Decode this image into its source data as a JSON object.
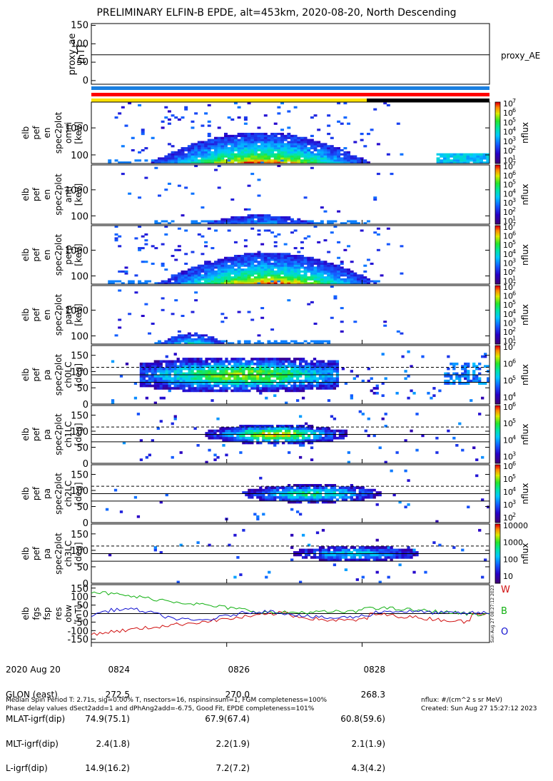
{
  "title": "PRELIMINARY ELFIN-B EPDE, alt=453km, 2020-08-20, North Descending",
  "chart_data": [
    {
      "type": "line",
      "panel": "proxy_ae",
      "ylabel": "proxy_ae [nT]",
      "yticks": [
        "150",
        "100",
        "50",
        "0"
      ],
      "ylim": [
        -10,
        155
      ],
      "right_label": "proxy_AE",
      "series": [
        {
          "values": [
            70,
            70
          ]
        }
      ]
    },
    {
      "type": "heatmap",
      "panel": "elb_pef_en_spec2plot_omni",
      "ylabel": "elb pef en spec2plot omni [keV]",
      "yticks": [
        "1000",
        "100"
      ],
      "colorbar_label": "nflux",
      "colorbar_ticks": [
        "10^7",
        "10^6",
        "10^5",
        "10^4",
        "10^3",
        "10^2",
        "10^1"
      ]
    },
    {
      "type": "heatmap",
      "panel": "elb_pef_en_spec2plot_anti",
      "ylabel": "elb pef en spec2plot anti [keV]",
      "yticks": [
        "1000",
        "100"
      ],
      "colorbar_label": "nflux",
      "colorbar_ticks": [
        "10^7",
        "10^6",
        "10^5",
        "10^4",
        "10^3",
        "10^2",
        "10^1"
      ]
    },
    {
      "type": "heatmap",
      "panel": "elb_pef_en_spec2plot_perp",
      "ylabel": "elb pef en spec2plot perp [keV]",
      "yticks": [
        "1000",
        "100"
      ],
      "colorbar_label": "nflux",
      "colorbar_ticks": [
        "10^7",
        "10^6",
        "10^5",
        "10^4",
        "10^3",
        "10^2",
        "10^1"
      ]
    },
    {
      "type": "heatmap",
      "panel": "elb_pef_en_spec2plot_para",
      "ylabel": "elb pef en spec2plot para [keV]",
      "yticks": [
        "1000",
        "100"
      ],
      "colorbar_label": "nflux",
      "colorbar_ticks": [
        "10^7",
        "10^6",
        "10^5",
        "10^4",
        "10^3",
        "10^2",
        "10^1"
      ]
    },
    {
      "type": "heatmap",
      "panel": "elb_pef_pa_spec2plot_ch0LC",
      "ylabel": "elb pef pa spec2plot ch0LC [deg]",
      "yticks": [
        "150",
        "100",
        "50",
        "0"
      ],
      "colorbar_label": "nflux",
      "colorbar_ticks": [
        "10^7",
        "10^6",
        "10^5",
        "10^4"
      ],
      "reference_lines": {
        "solid": [
          90,
          67
        ],
        "dashed": [
          113
        ]
      }
    },
    {
      "type": "heatmap",
      "panel": "elb_pef_pa_spec2plot_ch1LC",
      "ylabel": "elb pef pa spec2plot ch1LC [deg]",
      "yticks": [
        "150",
        "100",
        "50",
        "0"
      ],
      "colorbar_label": "nflux",
      "colorbar_ticks": [
        "10^6",
        "10^5",
        "10^4",
        "10^3"
      ],
      "reference_lines": {
        "solid": [
          90,
          67
        ],
        "dashed": [
          113
        ]
      }
    },
    {
      "type": "heatmap",
      "panel": "elb_pef_pa_spec2plot_ch2LC",
      "ylabel": "elb pef pa spec2plot ch2LC [deg]",
      "yticks": [
        "150",
        "100",
        "50",
        "0"
      ],
      "colorbar_label": "nflux",
      "colorbar_ticks": [
        "10^6",
        "10^5",
        "10^4",
        "10^3",
        "10^2"
      ],
      "reference_lines": {
        "solid": [
          90,
          67
        ],
        "dashed": [
          113
        ]
      }
    },
    {
      "type": "heatmap",
      "panel": "elb_pef_pa_spec2plot_ch3LC",
      "ylabel": "elb pef pa spec2plot ch3LC [deg]",
      "yticks": [
        "150",
        "100",
        "50",
        "0"
      ],
      "colorbar_label": "nflux",
      "colorbar_ticks": [
        "10000",
        "1000",
        "100",
        "10"
      ],
      "reference_lines": {
        "solid": [
          90,
          67
        ],
        "dashed": [
          113
        ]
      }
    },
    {
      "type": "line",
      "panel": "elb_fgs_fsp_res_obw",
      "ylabel": "elb fgs fsp res obw [nT]",
      "yticks": [
        "150",
        "100",
        "50",
        "0",
        "-50",
        "-100",
        "-150"
      ],
      "ylim": [
        -170,
        170
      ],
      "legend": [
        "W",
        "B",
        "O"
      ],
      "colors": [
        "#d01010",
        "#10b010",
        "#1010d0"
      ]
    }
  ],
  "footer": {
    "labels": [
      "2020 Aug 20",
      "GLON (east)",
      "MLAT-igrf(dip)",
      "MLT-igrf(dip)",
      "L-igrf(dip)"
    ],
    "col1": [
      "0824",
      "272.5",
      "74.9(75.1)",
      "2.4(1.8)",
      "14.9(16.2)"
    ],
    "col2": [
      "0826",
      "270.0",
      "67.9(67.4)",
      "2.2(1.9)",
      "7.2(7.2)"
    ],
    "col3": [
      "0828",
      "268.3",
      "60.8(59.6)",
      "2.1(1.9)",
      "4.3(4.2)"
    ],
    "note1": "Median Spin Period T: 2.71s, sig=0.00% T, nsectors=16, nspinsinsum=1, FGM completeness=100%",
    "note2": "Phase delay values dSect2add=1 and dPhAng2add=-6.75, Good Fit, EPDE completeness=101%",
    "units": "nflux: #/(cm^2 s sr MeV)",
    "created": "Created: Sun Aug 27 15:27:12 2023",
    "vertical_stamp": "Sun Aug 27 08:27:12 2023"
  },
  "colors": {
    "bar_blue": "#1a7fe0",
    "bar_red": "#ff0000",
    "bar_yellow": "#ffe000",
    "bar_black": "#000000"
  }
}
